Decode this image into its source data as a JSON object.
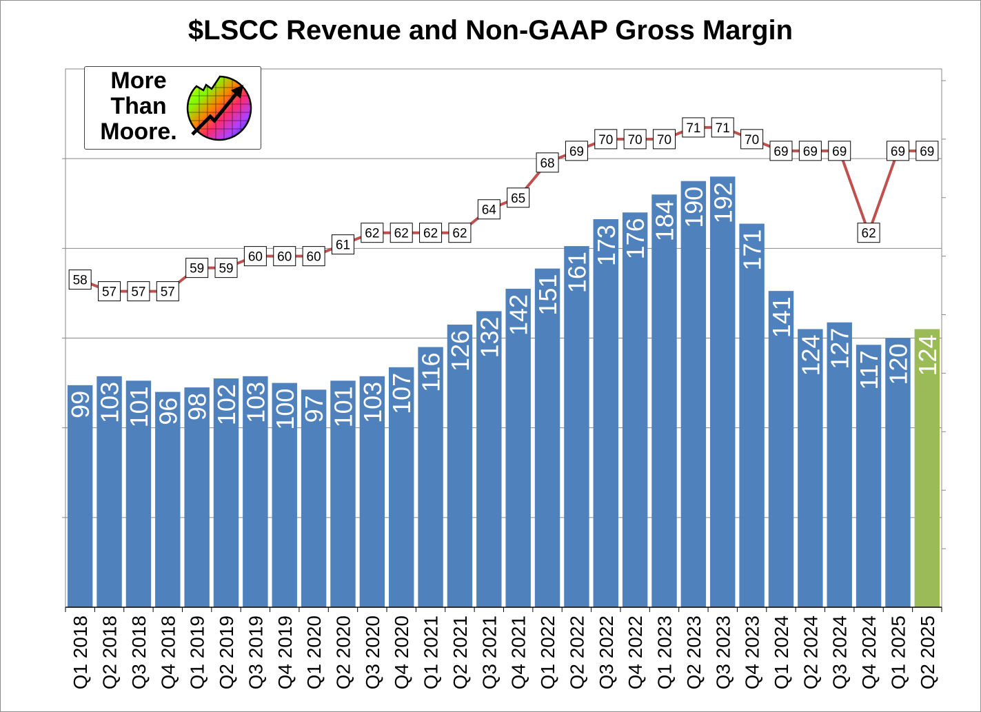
{
  "chart_data": {
    "type": "bar",
    "title": "$LSCC Revenue and Non-GAAP Gross Margin",
    "categories": [
      "Q1 2018",
      "Q2 2018",
      "Q3 2018",
      "Q4 2018",
      "Q1 2019",
      "Q2 2019",
      "Q3 2019",
      "Q4 2019",
      "Q1 2020",
      "Q2 2020",
      "Q3 2020",
      "Q4 2020",
      "Q1 2021",
      "Q2 2021",
      "Q3 2021",
      "Q4 2021",
      "Q1 2022",
      "Q2 2022",
      "Q3 2022",
      "Q4 2022",
      "Q1 2023",
      "Q2 2023",
      "Q3 2023",
      "Q4 2023",
      "Q1 2024",
      "Q2 2024",
      "Q3 2024",
      "Q4 2024",
      "Q1 2025",
      "Q2 2025"
    ],
    "series": [
      {
        "type": "bar",
        "values": [
          99,
          103,
          101,
          96,
          98,
          102,
          103,
          100,
          97,
          101,
          103,
          107,
          116,
          126,
          132,
          142,
          151,
          161,
          173,
          176,
          184,
          190,
          192,
          171,
          141,
          124,
          127,
          117,
          120,
          124
        ],
        "highlight_last": true
      },
      {
        "type": "line",
        "values": [
          58,
          57,
          57,
          57,
          59,
          59,
          60,
          60,
          60,
          61,
          62,
          62,
          62,
          62,
          64,
          65,
          68,
          69,
          70,
          70,
          70,
          71,
          71,
          70,
          69,
          69,
          69,
          62,
          69,
          69
        ]
      }
    ],
    "colors": {
      "bar": "#4f81bd",
      "bar_highlight": "#9bbb59",
      "line": "#c0504d"
    },
    "ylim_revenue": [
      0,
      240
    ],
    "ylim_margin": [
      30,
      76
    ],
    "grid": "horizontal",
    "xlabel": "",
    "ylabel": ""
  },
  "logo": {
    "line1": "More",
    "line2": "Than",
    "line3": "Moore."
  }
}
